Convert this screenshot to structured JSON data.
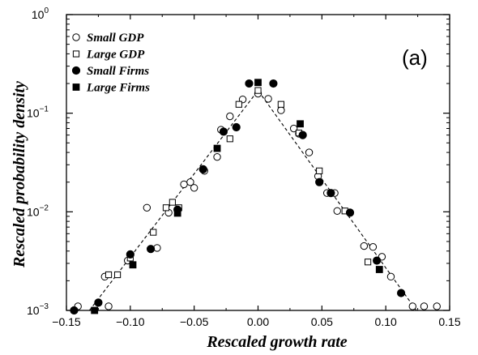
{
  "chart_data": {
    "type": "scatter",
    "xlabel": "Rescaled growth rate",
    "ylabel": "Rescaled probability density",
    "panel_label": "(a)",
    "xlim": [
      -0.15,
      0.15
    ],
    "ylim": [
      0.001,
      1
    ],
    "yscale": "log",
    "x_ticks": [
      "−0.15",
      "−0.10",
      "−0.05",
      "0.00",
      "0.05",
      "0.10",
      "0.15"
    ],
    "y_ticks": [
      {
        "base": "10",
        "exp": "0"
      },
      {
        "base": "10",
        "exp": "−1"
      },
      {
        "base": "10",
        "exp": "−2"
      },
      {
        "base": "10",
        "exp": "−3"
      }
    ],
    "legend_position": "top-left",
    "grid": false,
    "series": [
      {
        "name": "Small GDP",
        "marker": "open-circle",
        "points": [
          [
            -0.141,
            0.0011
          ],
          [
            -0.117,
            0.0011
          ],
          [
            -0.12,
            0.0022
          ],
          [
            -0.102,
            0.0032
          ],
          [
            -0.087,
            0.011
          ],
          [
            -0.079,
            0.0043
          ],
          [
            -0.07,
            0.0098
          ],
          [
            -0.063,
            0.0105
          ],
          [
            -0.058,
            0.019
          ],
          [
            -0.053,
            0.02
          ],
          [
            -0.05,
            0.0175
          ],
          [
            -0.042,
            0.026
          ],
          [
            -0.032,
            0.036
          ],
          [
            -0.029,
            0.068
          ],
          [
            -0.022,
            0.093
          ],
          [
            -0.012,
            0.138
          ],
          [
            0.0,
            0.158
          ],
          [
            0.008,
            0.14
          ],
          [
            0.018,
            0.107
          ],
          [
            0.028,
            0.07
          ],
          [
            0.032,
            0.062
          ],
          [
            0.04,
            0.04
          ],
          [
            0.047,
            0.023
          ],
          [
            0.054,
            0.0155
          ],
          [
            0.06,
            0.0155
          ],
          [
            0.062,
            0.0102
          ],
          [
            0.083,
            0.0045
          ],
          [
            0.09,
            0.0044
          ],
          [
            0.097,
            0.0035
          ],
          [
            0.104,
            0.0022
          ],
          [
            0.121,
            0.0011
          ],
          [
            0.13,
            0.0011
          ],
          [
            0.14,
            0.0011
          ]
        ]
      },
      {
        "name": "Large GDP",
        "marker": "open-square",
        "points": [
          [
            -0.117,
            0.0023
          ],
          [
            -0.11,
            0.0023
          ],
          [
            -0.1,
            0.0034
          ],
          [
            -0.082,
            0.0062
          ],
          [
            -0.072,
            0.011
          ],
          [
            -0.067,
            0.0125
          ],
          [
            -0.062,
            0.011
          ],
          [
            -0.022,
            0.055
          ],
          [
            -0.015,
            0.123
          ],
          [
            0.0,
            0.17
          ],
          [
            0.018,
            0.123
          ],
          [
            0.032,
            0.063
          ],
          [
            0.048,
            0.026
          ],
          [
            0.068,
            0.0102
          ],
          [
            0.086,
            0.0031
          ]
        ]
      },
      {
        "name": "Small Firms",
        "marker": "filled-circle",
        "points": [
          [
            -0.144,
            0.001
          ],
          [
            -0.125,
            0.0012
          ],
          [
            -0.1,
            0.0037
          ],
          [
            -0.084,
            0.0042
          ],
          [
            -0.063,
            0.0105
          ],
          [
            -0.043,
            0.027
          ],
          [
            -0.027,
            0.065
          ],
          [
            -0.017,
            0.072
          ],
          [
            -0.007,
            0.2
          ],
          [
            0.012,
            0.2
          ],
          [
            0.035,
            0.06
          ],
          [
            0.048,
            0.02
          ],
          [
            0.057,
            0.0155
          ],
          [
            0.072,
            0.0098
          ],
          [
            0.093,
            0.0032
          ],
          [
            0.112,
            0.0015
          ]
        ]
      },
      {
        "name": "Large Firms",
        "marker": "filled-square",
        "points": [
          [
            -0.128,
            0.001
          ],
          [
            -0.098,
            0.0029
          ],
          [
            -0.063,
            0.0097
          ],
          [
            -0.032,
            0.044
          ],
          [
            0.0,
            0.205
          ],
          [
            0.033,
            0.078
          ],
          [
            0.095,
            0.0026
          ]
        ]
      }
    ],
    "fit_line": {
      "style": "dashed",
      "peak": [
        0.0,
        0.17
      ],
      "left_end": [
        -0.132,
        0.001
      ],
      "right_end": [
        0.124,
        0.001
      ]
    }
  }
}
